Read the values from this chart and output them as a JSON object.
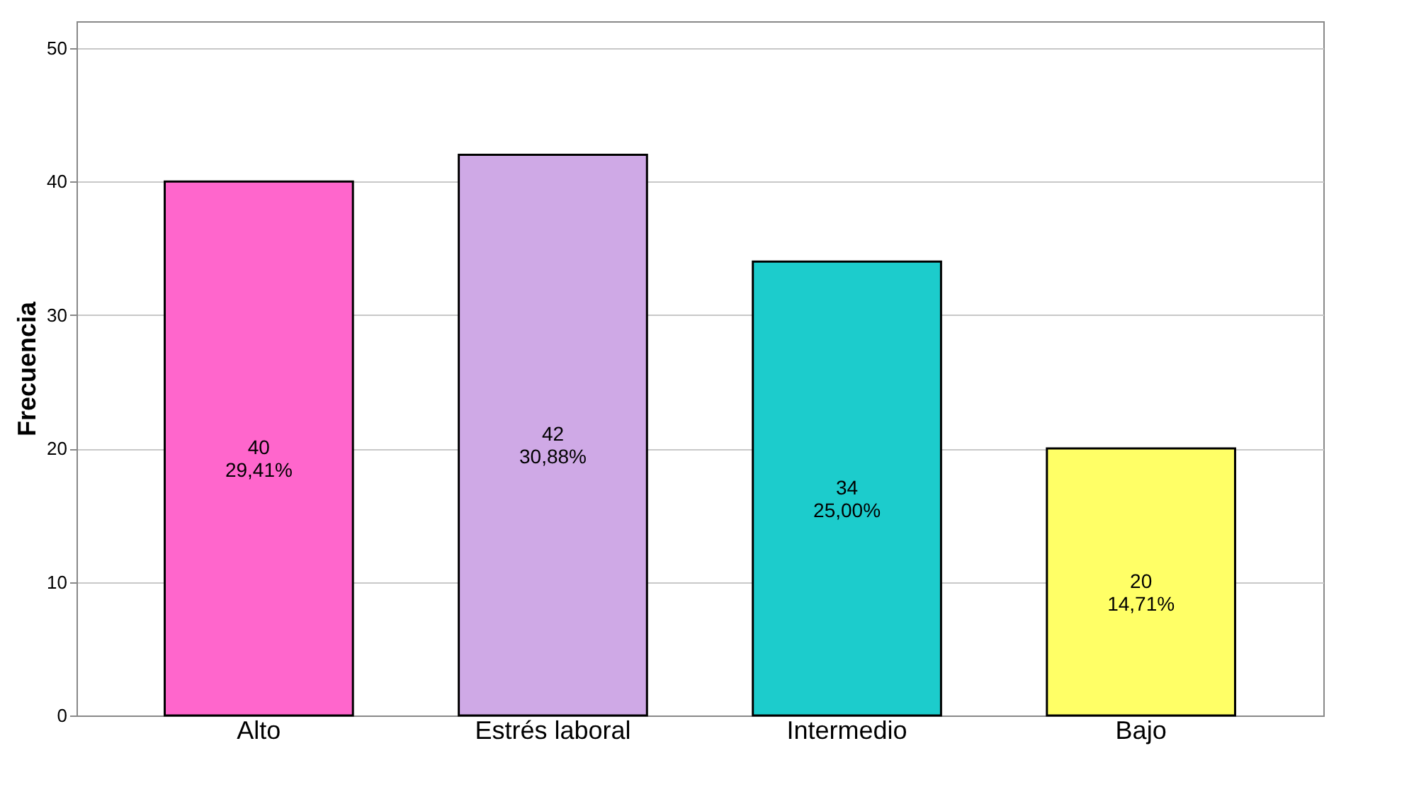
{
  "chart_data": {
    "type": "bar",
    "ylabel": "Frecuencia",
    "categories": [
      "Alto",
      "Estrés laboral",
      "Intermedio",
      "Bajo"
    ],
    "values": [
      40,
      42,
      34,
      20
    ],
    "colors": [
      "#ff66cc",
      "#cfa9e6",
      "#1ccccc",
      "#ffff66"
    ],
    "value_labels": [
      "40\n29,41%",
      "42\n30,88%",
      "34\n25,00%",
      "20\n14,71%"
    ],
    "ylim": [
      0,
      52
    ],
    "yticks": [
      0,
      10,
      20,
      30,
      40,
      50
    ],
    "grid": "y"
  }
}
